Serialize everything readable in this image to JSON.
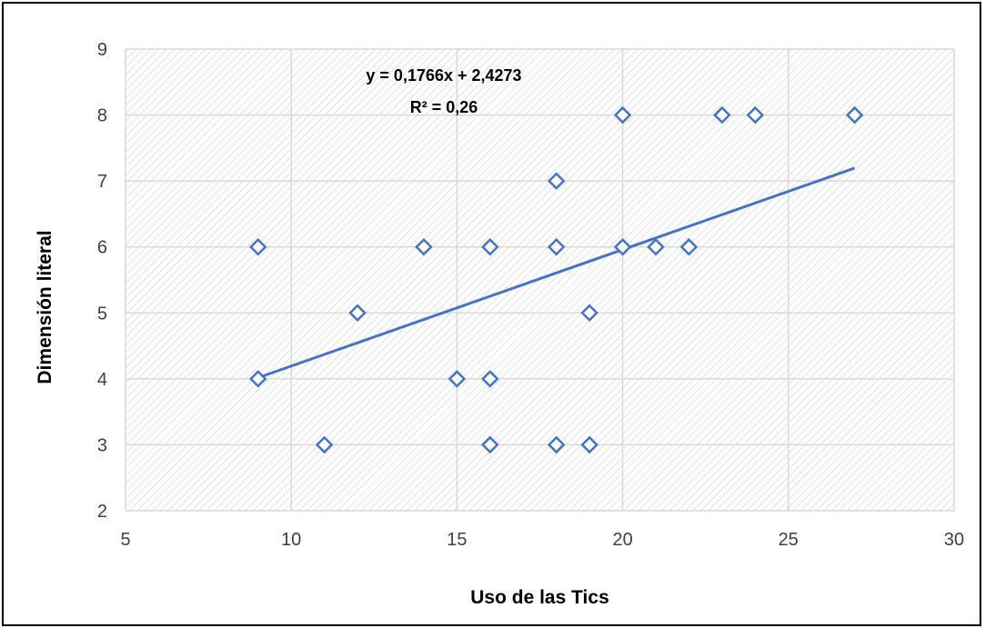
{
  "chart_data": {
    "type": "scatter",
    "xlabel": "Uso de las Tics",
    "ylabel": "Dimensión literal",
    "xlim": [
      5,
      30
    ],
    "ylim": [
      2,
      9
    ],
    "xticks": [
      "5",
      "10",
      "15",
      "20",
      "25",
      "30"
    ],
    "yticks": [
      "2",
      "3",
      "4",
      "5",
      "6",
      "7",
      "8",
      "9"
    ],
    "grid": true,
    "points": [
      {
        "x": 9,
        "y": 6
      },
      {
        "x": 9,
        "y": 4
      },
      {
        "x": 11,
        "y": 3
      },
      {
        "x": 12,
        "y": 5
      },
      {
        "x": 14,
        "y": 6
      },
      {
        "x": 15,
        "y": 4
      },
      {
        "x": 16,
        "y": 6
      },
      {
        "x": 16,
        "y": 4
      },
      {
        "x": 16,
        "y": 3
      },
      {
        "x": 18,
        "y": 7
      },
      {
        "x": 18,
        "y": 6
      },
      {
        "x": 18,
        "y": 3
      },
      {
        "x": 19,
        "y": 5
      },
      {
        "x": 19,
        "y": 3
      },
      {
        "x": 20,
        "y": 8
      },
      {
        "x": 20,
        "y": 6
      },
      {
        "x": 21,
        "y": 6
      },
      {
        "x": 22,
        "y": 6
      },
      {
        "x": 23,
        "y": 8
      },
      {
        "x": 24,
        "y": 8
      },
      {
        "x": 27,
        "y": 8
      }
    ],
    "trendline": {
      "slope": 0.1766,
      "intercept": 2.4273,
      "x_range": [
        9,
        27
      ],
      "equation": "y = 0,1766x + 2,4273",
      "r2_label": "R² = 0,26"
    },
    "colors": {
      "marker": "#4472C4",
      "trendline": "#4472C4",
      "grid": "#D9D9D9"
    }
  }
}
